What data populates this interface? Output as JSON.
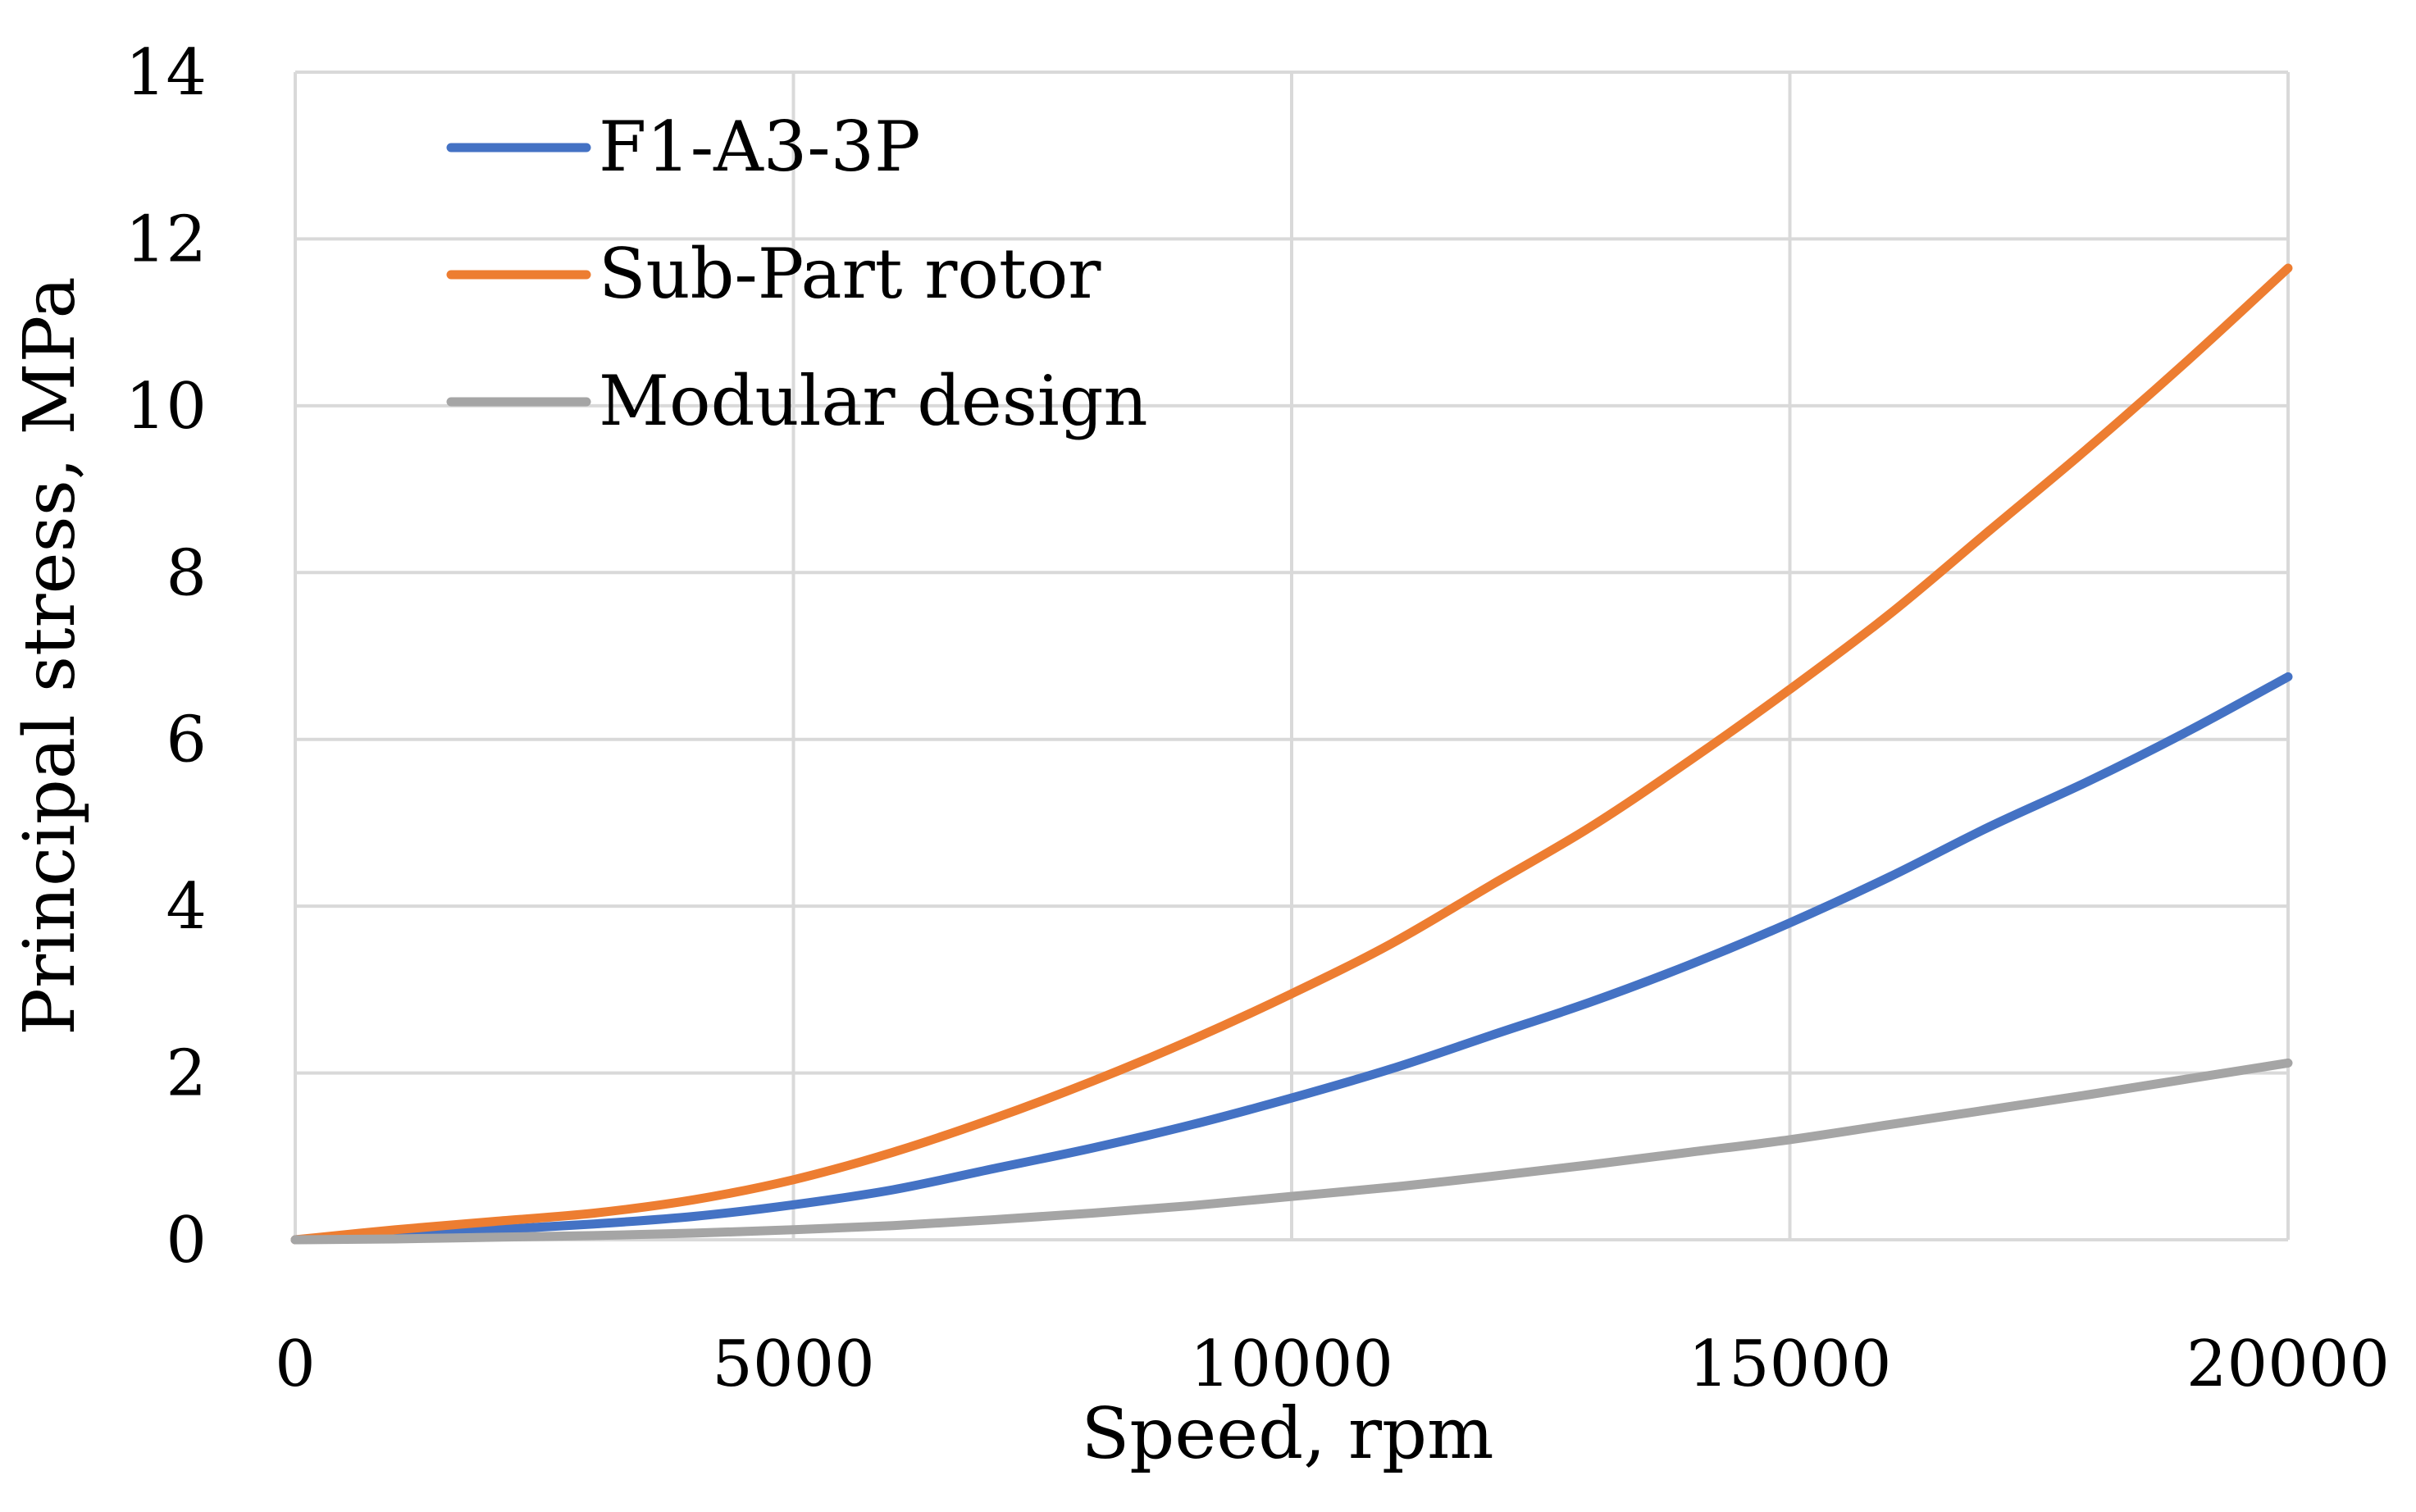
{
  "chart_data": {
    "type": "line",
    "title": "",
    "xlabel": "Speed, rpm",
    "ylabel": "Principal stress, MPa",
    "xlim": [
      0,
      20000
    ],
    "ylim": [
      0,
      14
    ],
    "x_ticks": [
      0,
      5000,
      10000,
      15000,
      20000
    ],
    "y_ticks": [
      0,
      2,
      4,
      6,
      8,
      10,
      12,
      14
    ],
    "grid": true,
    "legend_position": "top-left",
    "x": [
      0,
      1000,
      2000,
      3000,
      4000,
      5000,
      6000,
      7000,
      8000,
      9000,
      10000,
      11000,
      12000,
      13000,
      14000,
      15000,
      16000,
      17000,
      18000,
      19000,
      20000
    ],
    "series": [
      {
        "name": "F1-A3-3P",
        "color": "#4472C4",
        "values": [
          0,
          0.07,
          0.12,
          0.19,
          0.28,
          0.42,
          0.6,
          0.85,
          1.1,
          1.38,
          1.7,
          2.05,
          2.45,
          2.85,
          3.3,
          3.8,
          4.35,
          4.95,
          5.5,
          6.1,
          6.75
        ]
      },
      {
        "name": "Sub-Part rotor",
        "color": "#ED7D31",
        "values": [
          0,
          0.12,
          0.22,
          0.32,
          0.48,
          0.72,
          1.05,
          1.45,
          1.9,
          2.4,
          2.95,
          3.55,
          4.25,
          4.95,
          5.75,
          6.6,
          7.5,
          8.5,
          9.5,
          10.55,
          11.65
        ]
      },
      {
        "name": "Modular design",
        "color": "#A5A5A5",
        "values": [
          0,
          0.01,
          0.03,
          0.05,
          0.08,
          0.12,
          0.17,
          0.24,
          0.32,
          0.41,
          0.52,
          0.63,
          0.76,
          0.9,
          1.05,
          1.2,
          1.38,
          1.56,
          1.74,
          1.93,
          2.12
        ]
      }
    ]
  }
}
